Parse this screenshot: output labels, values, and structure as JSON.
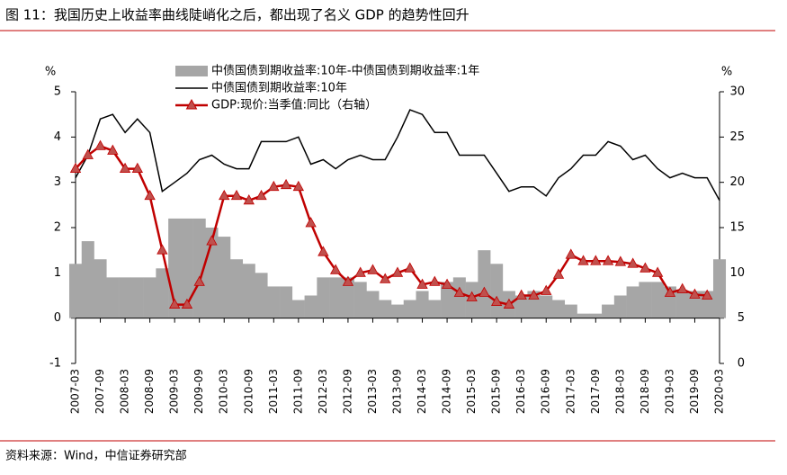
{
  "chart_data": {
    "type": "combo",
    "title": "图 11：我国历史上收益率曲线陡峭化之后，都出现了名义 GDP 的趋势性回升",
    "source": "资料来源：Wind，中信证券研究部",
    "y_label": "%",
    "y2_label": "%",
    "categories": [
      "2007-03",
      null,
      "2007-09",
      null,
      "2008-03",
      null,
      "2008-09",
      null,
      "2009-03",
      null,
      "2009-09",
      null,
      "2010-03",
      null,
      "2010-09",
      null,
      "2011-03",
      null,
      "2011-09",
      null,
      "2012-03",
      null,
      "2012-09",
      null,
      "2013-03",
      null,
      "2013-09",
      null,
      "2014-03",
      null,
      "2014-09",
      null,
      "2015-03",
      null,
      "2015-09",
      null,
      "2016-03",
      null,
      "2016-09",
      null,
      "2017-03",
      null,
      "2017-09",
      null,
      "2018-03",
      null,
      "2018-09",
      null,
      "2019-03",
      null,
      "2019-09",
      null,
      "2020-03"
    ],
    "ylim": [
      -1,
      5
    ],
    "yticks": [
      -1,
      0,
      1,
      2,
      3,
      4,
      5
    ],
    "y2lim": [
      0,
      30
    ],
    "y2ticks": [
      0,
      5,
      10,
      15,
      20,
      25,
      30
    ],
    "legend": "top",
    "series": [
      {
        "name": "中债国债到期收益率:10年-中债国债到期收益率:1年",
        "kind": "area",
        "color": "#a6a6a6",
        "values": [
          1.2,
          1.7,
          1.3,
          0.9,
          0.9,
          0.9,
          0.9,
          1.1,
          2.2,
          2.2,
          2.2,
          2.0,
          1.8,
          1.3,
          1.2,
          1.0,
          0.7,
          0.7,
          0.4,
          0.5,
          0.9,
          0.9,
          0.9,
          0.8,
          0.6,
          0.4,
          0.3,
          0.4,
          0.6,
          0.4,
          0.8,
          0.9,
          0.8,
          1.5,
          1.2,
          0.6,
          0.5,
          0.6,
          0.5,
          0.4,
          0.3,
          0.1,
          0.1,
          0.3,
          0.5,
          0.7,
          0.8,
          0.8,
          0.7,
          0.6,
          0.6,
          0.6,
          1.3
        ]
      },
      {
        "name": "中债国债到期收益率:10年",
        "kind": "line",
        "color": "#000000",
        "values": [
          3.1,
          3.6,
          4.4,
          4.5,
          4.1,
          4.4,
          4.1,
          2.8,
          3.0,
          3.2,
          3.5,
          3.6,
          3.4,
          3.3,
          3.3,
          3.9,
          3.9,
          3.9,
          4.0,
          3.4,
          3.5,
          3.3,
          3.5,
          3.6,
          3.5,
          3.5,
          4.0,
          4.6,
          4.5,
          4.1,
          4.1,
          3.6,
          3.6,
          3.6,
          3.2,
          2.8,
          2.9,
          2.9,
          2.7,
          3.1,
          3.3,
          3.6,
          3.6,
          3.9,
          3.8,
          3.5,
          3.6,
          3.3,
          3.1,
          3.2,
          3.1,
          3.1,
          2.6
        ]
      },
      {
        "name": "GDP:现价:当季值:同比（右轴）",
        "kind": "line-marker",
        "color": "#c00000",
        "axis": "y2",
        "values": [
          21.5,
          23,
          24,
          23.5,
          21.5,
          21.5,
          18.5,
          12.5,
          6.5,
          6.5,
          9,
          13.5,
          18.5,
          18.5,
          18,
          18.5,
          19.5,
          19.7,
          19.5,
          15.5,
          12.3,
          10.3,
          9,
          10,
          10.3,
          9.3,
          10,
          10.5,
          8.7,
          9,
          8.7,
          7.8,
          7.3,
          7.8,
          6.8,
          6.5,
          7.5,
          7.5,
          8,
          9.8,
          12,
          11.3,
          11.3,
          11.3,
          11.2,
          11,
          10.5,
          10,
          7.8,
          8.2,
          7.6,
          7.5,
          null
        ]
      }
    ]
  }
}
